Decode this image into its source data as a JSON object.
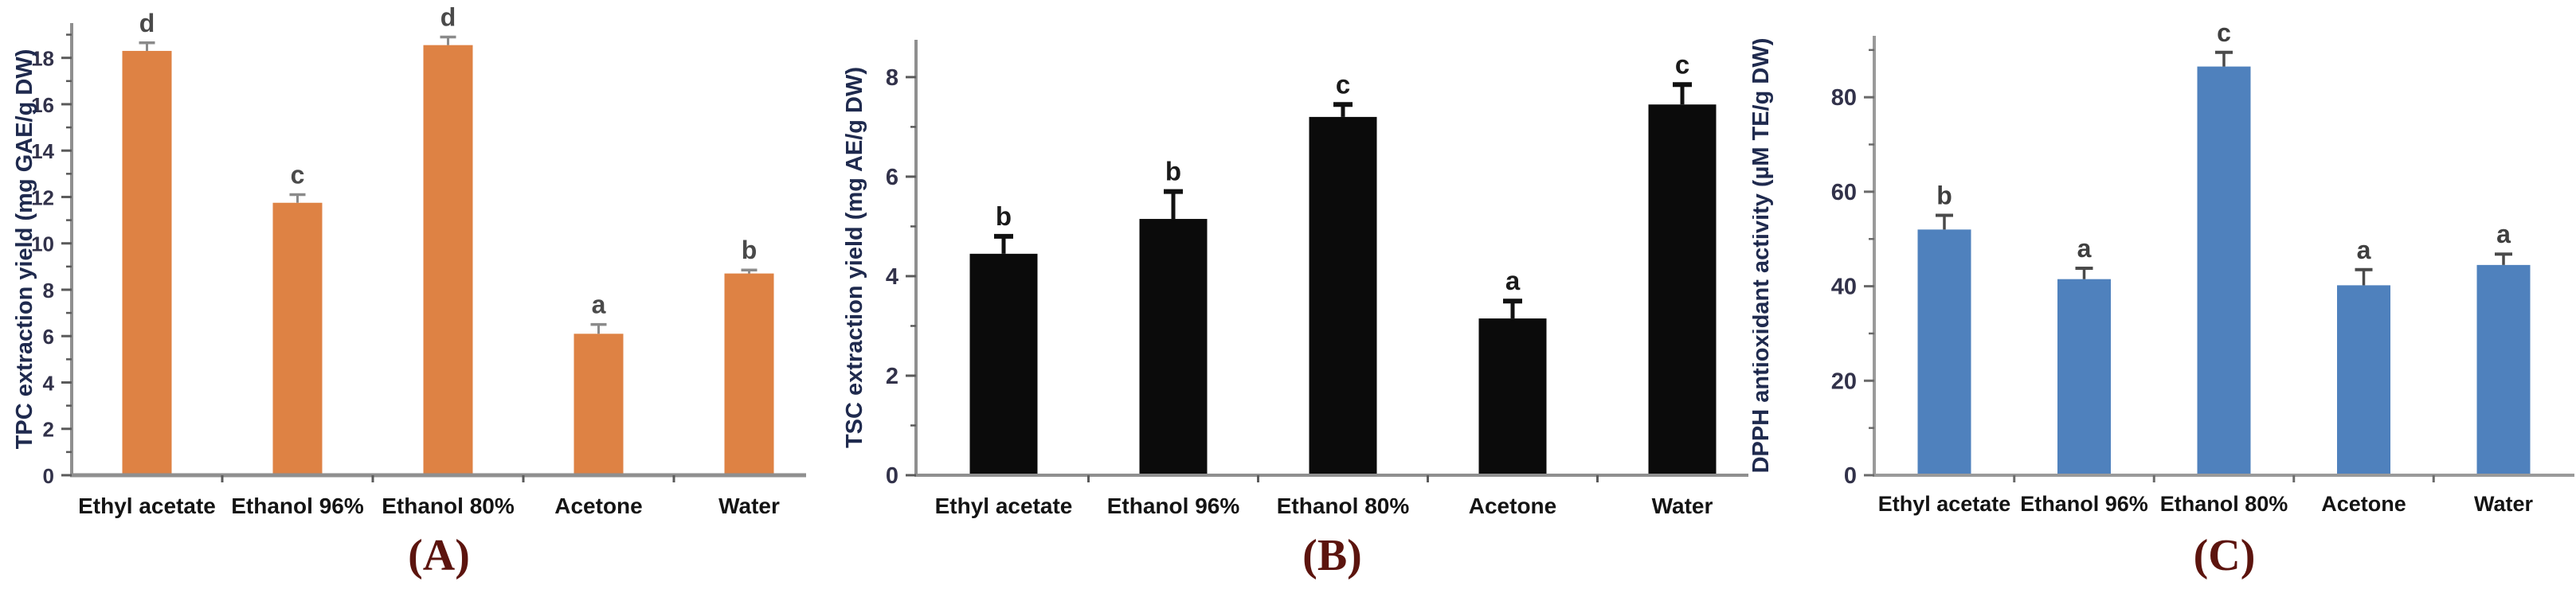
{
  "figure": {
    "background": "#ffffff",
    "description": "Three-panel bar figure comparing extraction solvents"
  },
  "chart_data": [
    {
      "type": "bar",
      "panel_label": "(A)",
      "panel_label_color": "#5C140E",
      "title": "",
      "xlabel": "",
      "ylabel": "TPC extraction yield (mg GAE/g DW)",
      "categories": [
        "Ethyl acetate",
        "Ethanol 96%",
        "Ethanol 80%",
        "Acetone",
        "Water"
      ],
      "values": [
        18.3,
        11.75,
        18.55,
        6.1,
        8.7
      ],
      "errors": [
        0.35,
        0.35,
        0.35,
        0.4,
        0.15
      ],
      "sig_letters": [
        "d",
        "c",
        "d",
        "a",
        "b"
      ],
      "bar_color": "#DE8244",
      "error_color": "#8a8a8a",
      "letter_color": "#4a4a4a",
      "axis_color": "#8f8f8f",
      "tick_color": "#5a5a5a",
      "tick_label_color": "#32324a",
      "ylabel_color": "#1f2a4e",
      "category_label_color": "#141414",
      "ylim": [
        0,
        19.5
      ],
      "yticks": [
        0,
        2,
        4,
        6,
        8,
        10,
        12,
        14,
        16,
        18
      ],
      "minor_tick_step": 1,
      "grid": false,
      "legend": null
    },
    {
      "type": "bar",
      "panel_label": "(B)",
      "panel_label_color": "#5C140E",
      "title": "",
      "xlabel": "",
      "ylabel": "TSC extraction yield (mg AE/g DW)",
      "categories": [
        "Ethyl acetate",
        "Ethanol 96%",
        "Ethanol 80%",
        "Acetone",
        "Water"
      ],
      "values": [
        4.45,
        5.15,
        7.2,
        3.15,
        7.45
      ],
      "errors": [
        0.35,
        0.55,
        0.25,
        0.35,
        0.4
      ],
      "sig_letters": [
        "b",
        "b",
        "c",
        "a",
        "c"
      ],
      "bar_color": "#0b0b0b",
      "error_color": "#111111",
      "letter_color": "#1a1a1a",
      "axis_color": "#8f8f8f",
      "tick_color": "#5a5a5a",
      "tick_label_color": "#32324a",
      "ylabel_color": "#1f2a4e",
      "category_label_color": "#141414",
      "ylim": [
        0,
        8.75
      ],
      "yticks": [
        0,
        2,
        4,
        6,
        8
      ],
      "minor_tick_step": 1,
      "grid": false,
      "legend": null
    },
    {
      "type": "bar",
      "panel_label": "(C)",
      "panel_label_color": "#5C140E",
      "title": "",
      "xlabel": "",
      "ylabel": "DPPH antioxidant activity (µM TE/g DW)",
      "categories": [
        "Ethyl acetate",
        "Ethanol 96%",
        "Ethanol 80%",
        "Acetone",
        "Water"
      ],
      "values": [
        52,
        41.5,
        86.5,
        40.2,
        44.5
      ],
      "errors": [
        3,
        2.3,
        3,
        3.3,
        2.3
      ],
      "sig_letters": [
        "b",
        "a",
        "c",
        "a",
        "a"
      ],
      "bar_color": "#4F81BD",
      "error_color": "#4a4a4a",
      "letter_color": "#3f3f3f",
      "axis_color": "#9a9a9a",
      "tick_color": "#6a6a6a",
      "tick_label_color": "#32324a",
      "ylabel_color": "#1f2a4e",
      "category_label_color": "#141414",
      "ylim": [
        0,
        93
      ],
      "yticks": [
        0,
        20,
        40,
        60,
        80
      ],
      "minor_tick_step": 10,
      "grid": false,
      "legend": null
    }
  ]
}
